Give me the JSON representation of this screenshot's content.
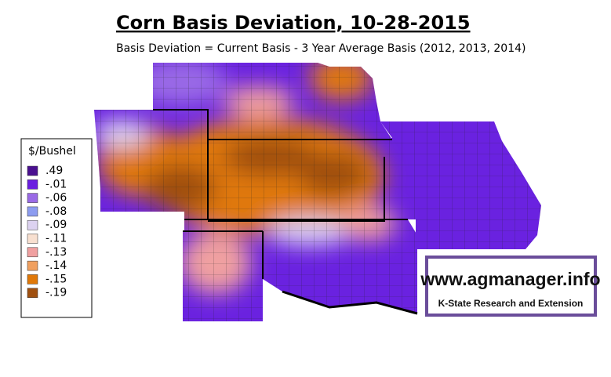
{
  "title": "Corn Basis Deviation, 10-28-2015",
  "subtitle": "Basis Deviation = Current Basis - 3 Year Average Basis (2012, 2013, 2014)",
  "legend": {
    "title": "$/Bushel",
    "items": [
      {
        "label": ".49",
        "color": "#4a1090"
      },
      {
        "label": "-.01",
        "color": "#6a1ee0"
      },
      {
        "label": "-.06",
        "color": "#9a6ae6"
      },
      {
        "label": "-.08",
        "color": "#8c9cf0"
      },
      {
        "label": "-.09",
        "color": "#dcd2f0"
      },
      {
        "label": "-.11",
        "color": "#f8e0d0"
      },
      {
        "label": "-.13",
        "color": "#f0a0a0"
      },
      {
        "label": "-.14",
        "color": "#f0a060"
      },
      {
        "label": "-.15",
        "color": "#e07808"
      },
      {
        "label": "-.19",
        "color": "#a05010"
      }
    ]
  },
  "watermark": {
    "url": "www.agmanager.info",
    "org": "K-State Research and Extension"
  }
}
